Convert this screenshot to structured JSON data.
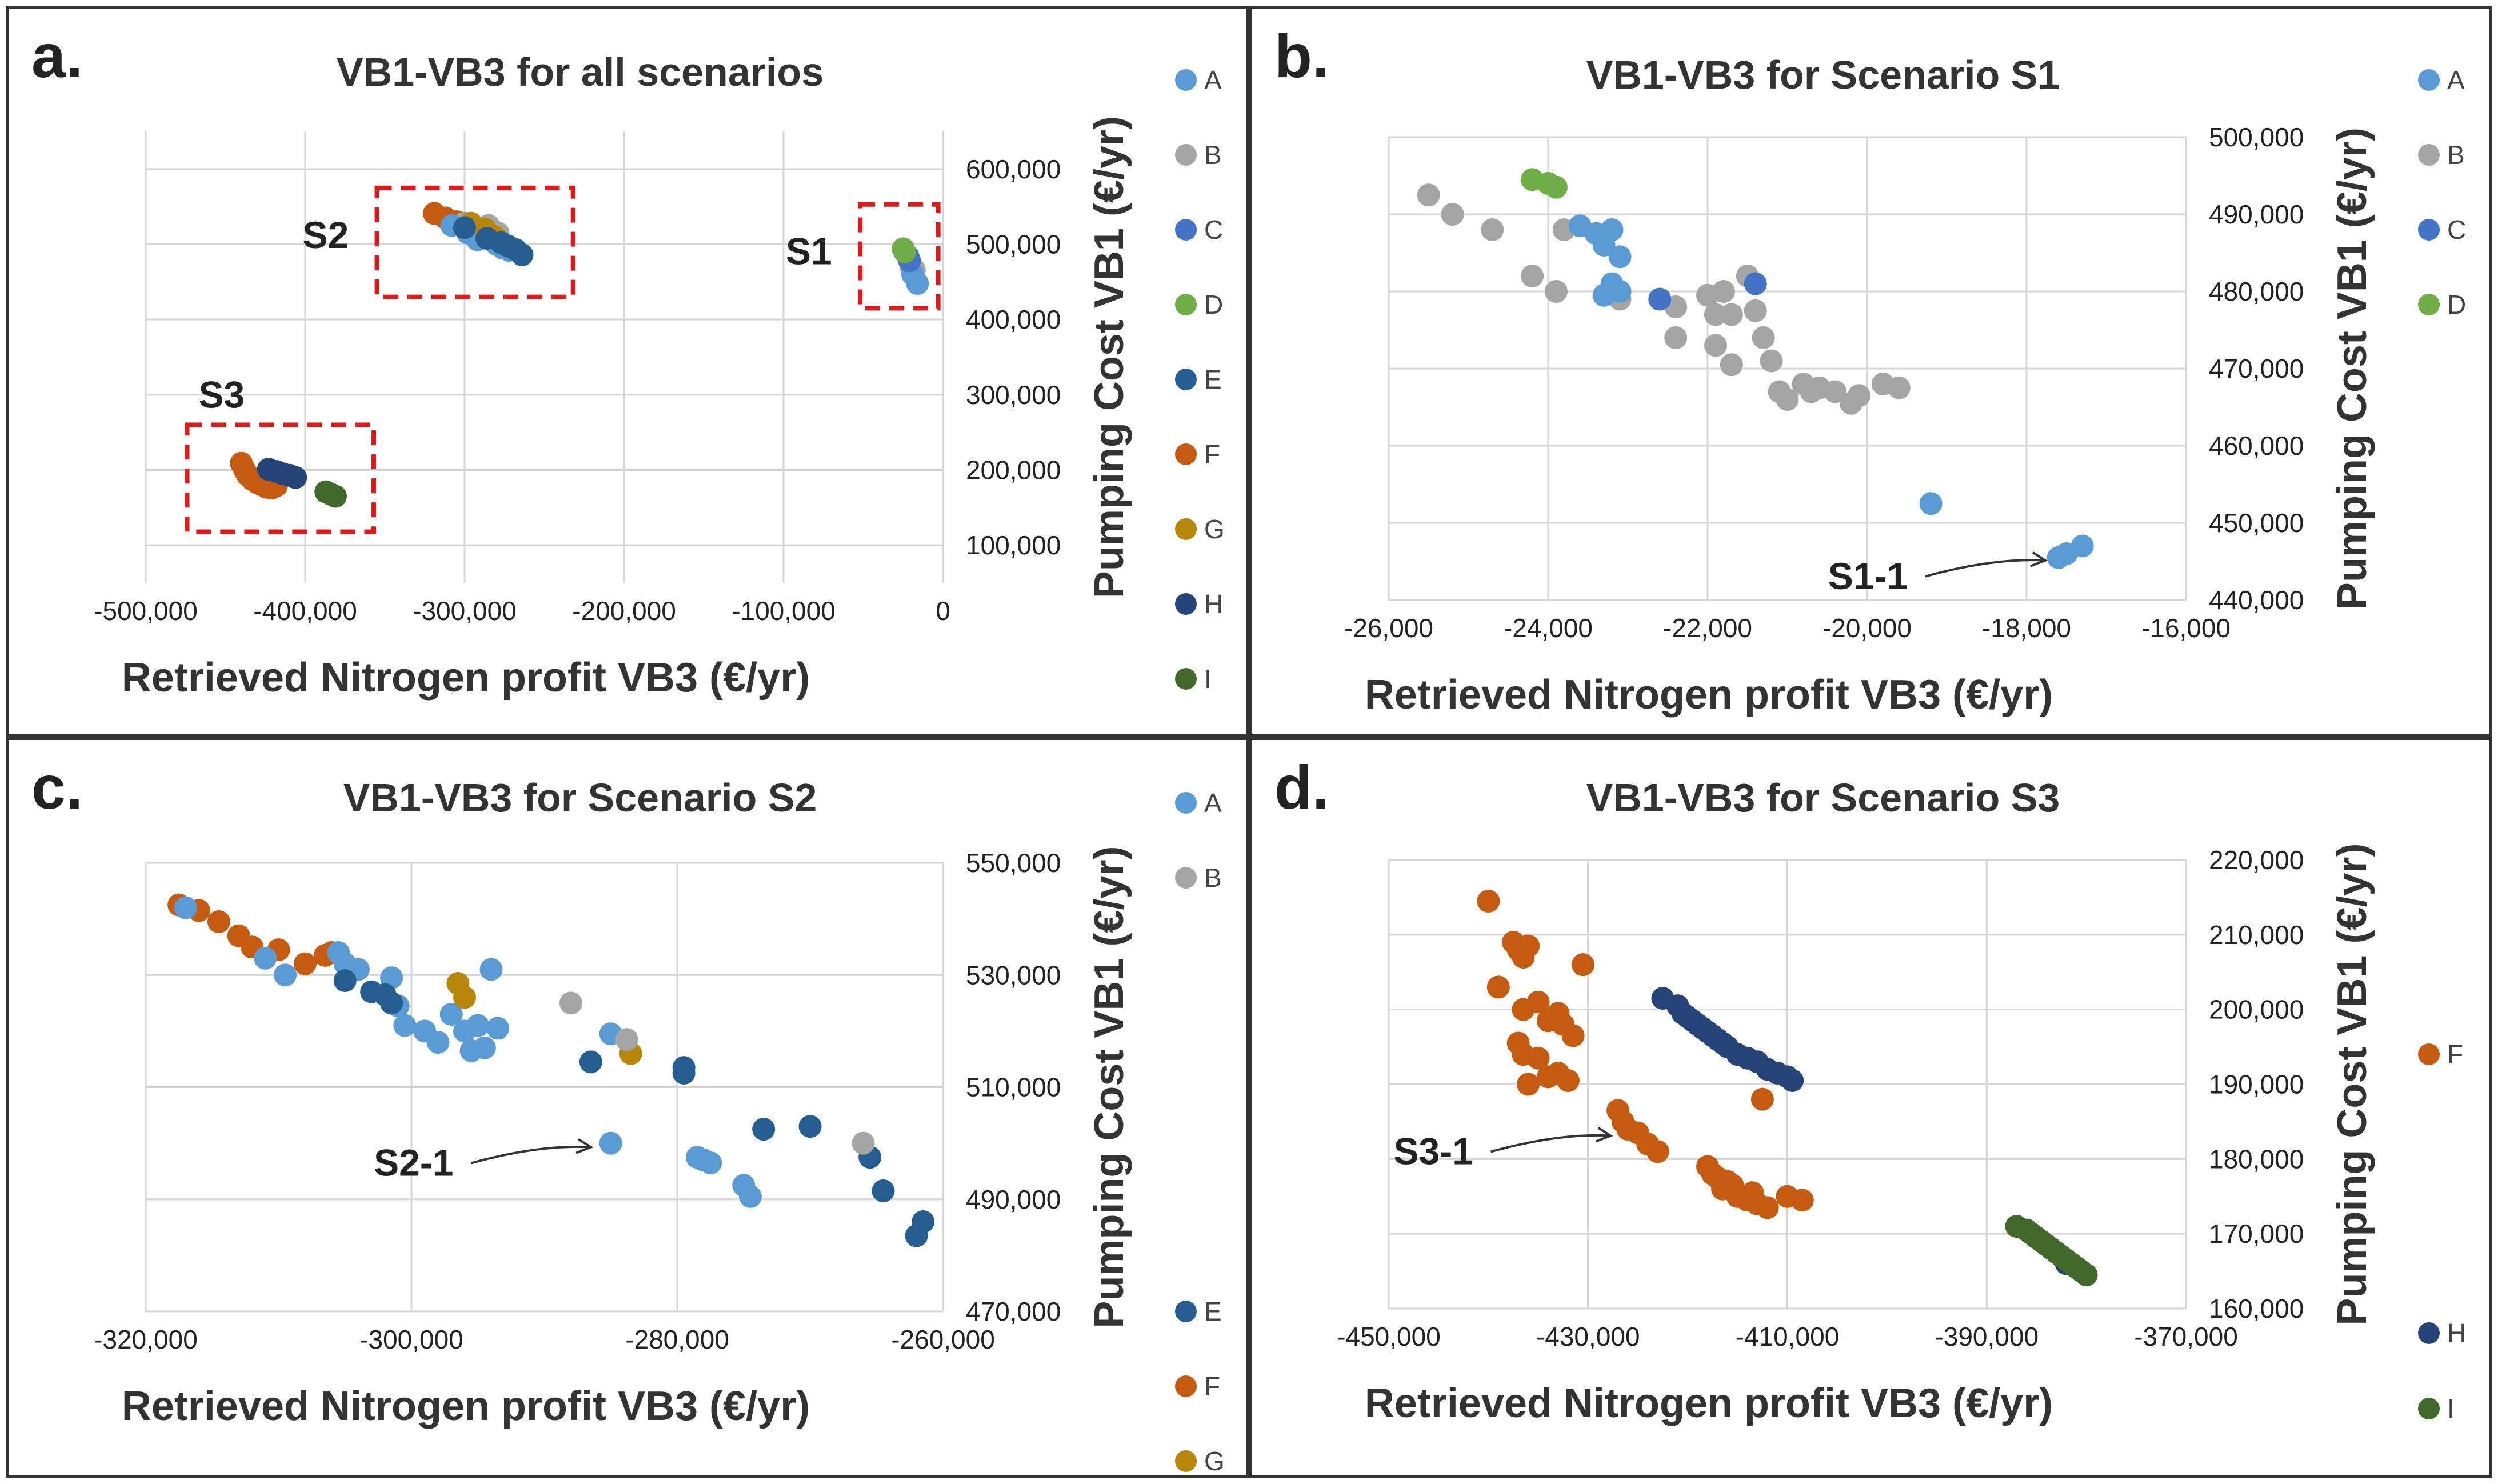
{
  "colors": {
    "A": "#5b9bd5",
    "B": "#a5a5a5",
    "C": "#4472c4",
    "D": "#70ad47",
    "E": "#255e91",
    "F": "#c55a11",
    "G": "#b8860b",
    "H": "#264478",
    "I": "#43682b"
  },
  "chart_data": [
    {
      "id": "a",
      "letter": "a.",
      "type": "scatter",
      "title": "VB1-VB3 for all scenarios",
      "xlabel": "Retrieved Nitrogen profit VB3 (€/yr)",
      "ylabel": "Pumping Cost VB1 (€/yr)",
      "xlim": [
        -500000,
        0
      ],
      "ylim": [
        50000,
        650000
      ],
      "xticks": [
        -500000,
        -400000,
        -300000,
        -200000,
        -100000,
        0
      ],
      "xtick_labels": [
        "-500,000",
        "-400,000",
        "-300,000",
        "-200,000",
        "-100,000",
        "0"
      ],
      "yticks": [
        100000,
        200000,
        300000,
        400000,
        500000,
        600000
      ],
      "ytick_labels": [
        "100,000",
        "200,000",
        "300,000",
        "400,000",
        "500,000",
        "600,000"
      ],
      "legend": [
        "A",
        "B",
        "C",
        "D",
        "E",
        "F",
        "G",
        "H",
        "I"
      ],
      "boxes": [
        {
          "label": "S2",
          "x": [
            -355000,
            -232000
          ],
          "y": [
            430000,
            575000
          ]
        },
        {
          "label": "S1",
          "x": [
            -52000,
            -3000
          ],
          "y": [
            415000,
            553000
          ]
        },
        {
          "label": "S3",
          "x": [
            -474000,
            -357000
          ],
          "y": [
            118000,
            260000
          ]
        }
      ],
      "series": [
        {
          "name": "F",
          "x": [
            -319000,
            -312000,
            -305000,
            -299000,
            -440000,
            -438000,
            -436000,
            -433000,
            -430000,
            -427000,
            -424000,
            -421000,
            -418000
          ],
          "y": [
            541000,
            535000,
            530000,
            522000,
            209000,
            200000,
            193000,
            187000,
            183000,
            180000,
            177000,
            176000,
            179000
          ]
        },
        {
          "name": "B",
          "x": [
            -300000,
            -290000,
            -285000,
            -279000,
            -20000,
            -18000
          ],
          "y": [
            528000,
            520000,
            525000,
            515000,
            470000,
            466000
          ]
        },
        {
          "name": "A",
          "x": [
            -308000,
            -298000,
            -292000,
            -280000,
            -276000,
            -272000,
            -19000,
            -16000
          ],
          "y": [
            525000,
            515000,
            506000,
            500000,
            495000,
            492000,
            460000,
            448000
          ]
        },
        {
          "name": "G",
          "x": [
            -296000,
            -287000,
            -281000
          ],
          "y": [
            528000,
            520000,
            510000
          ]
        },
        {
          "name": "E",
          "x": [
            -300000,
            -286000,
            -277000,
            -273000,
            -268000,
            -264000
          ],
          "y": [
            522000,
            508000,
            502000,
            498000,
            493000,
            486000
          ]
        },
        {
          "name": "C",
          "x": [
            -22000,
            -21000
          ],
          "y": [
            484000,
            478000
          ]
        },
        {
          "name": "D",
          "x": [
            -25000,
            -24000
          ],
          "y": [
            494000,
            490000
          ]
        },
        {
          "name": "H",
          "x": [
            -423000,
            -418000,
            -414000,
            -410000,
            -406000
          ],
          "y": [
            201000,
            198000,
            195000,
            193000,
            190000
          ]
        },
        {
          "name": "I",
          "x": [
            -387000,
            -384000,
            -381000
          ],
          "y": [
            171000,
            168000,
            165000
          ]
        }
      ]
    },
    {
      "id": "b",
      "letter": "b.",
      "type": "scatter",
      "title": "VB1-VB3 for Scenario S1",
      "xlabel": "Retrieved Nitrogen profit VB3 (€/yr)",
      "ylabel": "Pumping Cost VB1 (€/yr)",
      "xlim": [
        -26000,
        -16000
      ],
      "ylim": [
        440000,
        500000
      ],
      "xticks": [
        -26000,
        -24000,
        -22000,
        -20000,
        -18000,
        -16000
      ],
      "xtick_labels": [
        "-26,000",
        "-24,000",
        "-22,000",
        "-20,000",
        "-18,000",
        "-16,000"
      ],
      "yticks": [
        440000,
        450000,
        460000,
        470000,
        480000,
        490000,
        500000
      ],
      "ytick_labels": [
        "440,000",
        "450,000",
        "460,000",
        "470,000",
        "480,000",
        "490,000",
        "500,000"
      ],
      "legend": [
        "A",
        "B",
        "C",
        "D"
      ],
      "annotation": {
        "label": "S1-1",
        "x": -17550,
        "y": 445500
      },
      "series": [
        {
          "name": "B",
          "x": [
            -25500,
            -25200,
            -24700,
            -24200,
            -23900,
            -23800,
            -23100,
            -22400,
            -22400,
            -22000,
            -21900,
            -21800,
            -21700,
            -21400,
            -21300,
            -21200,
            -21100,
            -21000,
            -20800,
            -20700,
            -20600,
            -20400,
            -20200,
            -20100,
            -19800,
            -19600,
            -21900,
            -21700,
            -21500
          ],
          "y": [
            492500,
            490000,
            488000,
            482000,
            480000,
            488000,
            479000,
            478000,
            474000,
            479500,
            477000,
            480000,
            477000,
            477500,
            474000,
            471000,
            467000,
            466000,
            468000,
            467000,
            467500,
            467000,
            465500,
            466500,
            468000,
            467500,
            473000,
            470500,
            482000
          ]
        },
        {
          "name": "A",
          "x": [
            -23600,
            -23400,
            -23300,
            -23200,
            -23100,
            -23200,
            -23100,
            -23300,
            -19200,
            -17600,
            -17500,
            -17300
          ],
          "y": [
            488500,
            487500,
            486000,
            488000,
            484500,
            481000,
            480000,
            479500,
            452500,
            445500,
            446000,
            447000
          ]
        },
        {
          "name": "C",
          "x": [
            -22600,
            -21400
          ],
          "y": [
            479000,
            481000
          ]
        },
        {
          "name": "D",
          "x": [
            -24200,
            -24000,
            -23900
          ],
          "y": [
            494500,
            494000,
            493500
          ]
        }
      ]
    },
    {
      "id": "c",
      "letter": "c.",
      "type": "scatter",
      "title": "VB1-VB3 for Scenario S2",
      "xlabel": "Retrieved Nitrogen profit VB3 (€/yr)",
      "ylabel": "Pumping Cost VB1 (€/yr)",
      "xlim": [
        -320000,
        -260000
      ],
      "ylim": [
        470000,
        550000
      ],
      "xticks": [
        -320000,
        -300000,
        -280000,
        -260000
      ],
      "xtick_labels": [
        "-320,000",
        "-300,000",
        "-280,000",
        "-260,000"
      ],
      "yticks": [
        470000,
        490000,
        510000,
        530000,
        550000
      ],
      "ytick_labels": [
        "470,000",
        "490,000",
        "510,000",
        "530,000",
        "550,000"
      ],
      "legend": [
        "A",
        "B",
        "E",
        "F",
        "G"
      ],
      "annotation": {
        "label": "S2-1",
        "x": -285200,
        "y": 499800
      },
      "series": [
        {
          "name": "F",
          "x": [
            -317500,
            -316000,
            -314500,
            -313000,
            -312000,
            -310000,
            -308000,
            -306500,
            -306000
          ],
          "y": [
            542500,
            541500,
            539500,
            537000,
            535000,
            534500,
            532000,
            533500,
            534000
          ]
        },
        {
          "name": "A",
          "x": [
            -317000,
            -311000,
            -309500,
            -305500,
            -305000,
            -304000,
            -301500,
            -301000,
            -300500,
            -299000,
            -298000,
            -297000,
            -296000,
            -295500,
            -295000,
            -294500,
            -294000,
            -293500,
            -285000,
            -278500,
            -278000,
            -277500,
            -275000,
            -274500,
            -285000
          ],
          "y": [
            542000,
            533000,
            530000,
            534000,
            532000,
            531000,
            529500,
            524500,
            521000,
            520000,
            518000,
            523000,
            520000,
            516500,
            521000,
            517000,
            531000,
            520500,
            519500,
            497500,
            497000,
            496500,
            492500,
            490500,
            500000
          ]
        },
        {
          "name": "E",
          "x": [
            -305000,
            -303000,
            -302000,
            -301500,
            -286500,
            -279500,
            -279500,
            -273500,
            -270000,
            -265500,
            -264500,
            -262000,
            -261500
          ],
          "y": [
            529000,
            527000,
            526500,
            525000,
            514500,
            513500,
            512500,
            502500,
            503000,
            497500,
            491500,
            483500,
            486000
          ]
        },
        {
          "name": "G",
          "x": [
            -296500,
            -296000,
            -283500
          ],
          "y": [
            528500,
            526000,
            516000
          ]
        },
        {
          "name": "B",
          "x": [
            -288000,
            -283800,
            -266000
          ],
          "y": [
            525000,
            518500,
            500000
          ]
        }
      ]
    },
    {
      "id": "d",
      "letter": "d.",
      "type": "scatter",
      "title": "VB1-VB3 for Scenario S3",
      "xlabel": "Retrieved Nitrogen profit VB3 (€/yr)",
      "ylabel": "Pumping Cost VB1 (€/yr)",
      "xlim": [
        -450000,
        -370000
      ],
      "ylim": [
        160000,
        220000
      ],
      "xticks": [
        -450000,
        -430000,
        -410000,
        -390000,
        -370000
      ],
      "xtick_labels": [
        "-450,000",
        "-430,000",
        "-410,000",
        "-390,000",
        "-370,000"
      ],
      "yticks": [
        160000,
        170000,
        180000,
        190000,
        200000,
        210000,
        220000
      ],
      "ytick_labels": [
        "160,000",
        "170,000",
        "180,000",
        "190,000",
        "200,000",
        "210,000",
        "220,000"
      ],
      "legend": [
        "F",
        "H",
        "I"
      ],
      "annotation": {
        "label": "S3-1",
        "x": -426000,
        "y": 183500
      },
      "series": [
        {
          "name": "F",
          "x": [
            -440000,
            -437500,
            -437000,
            -436500,
            -436000,
            -439000,
            -436500,
            -435000,
            -434000,
            -431500,
            -433000,
            -432500,
            -437000,
            -436500,
            -435000,
            -434000,
            -433000,
            -432000,
            -436000,
            -430500,
            -412500,
            -427000,
            -426500,
            -426000,
            -425000,
            -424000,
            -423000,
            -418000,
            -417500,
            -417000,
            -416500,
            -416000,
            -415500,
            -415000,
            -414000,
            -413500,
            -413000,
            -412000,
            -410000,
            -408500
          ],
          "y": [
            214500,
            209000,
            208000,
            207000,
            208500,
            203000,
            200000,
            201000,
            198500,
            196500,
            199500,
            198000,
            195500,
            194000,
            193500,
            191000,
            191500,
            190500,
            190000,
            206000,
            188000,
            186500,
            185000,
            184000,
            183500,
            182000,
            181000,
            179000,
            178000,
            177500,
            176000,
            177000,
            176500,
            175000,
            174500,
            175500,
            174000,
            173500,
            175000,
            174500
          ]
        },
        {
          "name": "H",
          "x": [
            -422500,
            -421000,
            -420500,
            -420000,
            -419500,
            -419000,
            -418500,
            -418000,
            -417500,
            -417000,
            -416500,
            -416000,
            -415000,
            -414000,
            -413000,
            -412000,
            -411000,
            -410000,
            -409500,
            -382000
          ],
          "y": [
            201500,
            200500,
            199500,
            199000,
            198500,
            198000,
            197500,
            197000,
            196500,
            196000,
            195500,
            195000,
            194000,
            193500,
            193000,
            192000,
            191500,
            191000,
            190500,
            166000
          ]
        },
        {
          "name": "I",
          "x": [
            -387000,
            -386000,
            -385500,
            -385000,
            -384500,
            -384000,
            -383500,
            -383000,
            -382500,
            -382000,
            -381500,
            -381000,
            -380500,
            -380000
          ],
          "y": [
            171000,
            170500,
            170000,
            169500,
            169000,
            168500,
            168000,
            167500,
            167000,
            166500,
            166000,
            165500,
            165000,
            164500
          ]
        }
      ]
    }
  ]
}
